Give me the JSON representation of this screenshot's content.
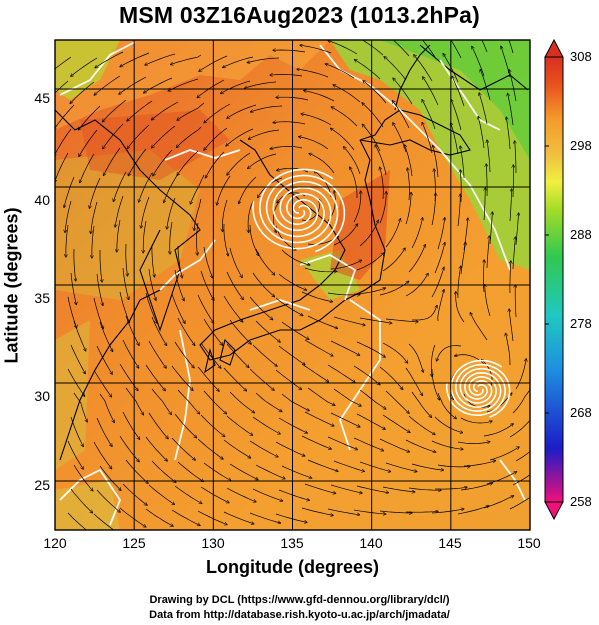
{
  "title": "MSM 03Z16Aug2023 (1013.2hPa)",
  "x_axis": {
    "label": "Longitude (degrees)",
    "ticks": [
      "120",
      "125",
      "130",
      "135",
      "140",
      "145",
      "150"
    ]
  },
  "y_axis": {
    "label": "Latitude  (degrees)",
    "ticks": [
      "25",
      "30",
      "35",
      "40",
      "45"
    ]
  },
  "colorbar": {
    "ticks": [
      "308",
      "298",
      "288",
      "278",
      "268",
      "258"
    ],
    "colors": [
      "#f0107a",
      "#1c1cc8",
      "#1e90e0",
      "#20c8c0",
      "#30c850",
      "#a8dc28",
      "#f0f040",
      "#f0c040",
      "#f49a2a",
      "#e8501e",
      "#d83020"
    ]
  },
  "credits": {
    "line1": "Drawing by DCL (https://www.gfd-dennou.org/library/dcl/)",
    "line2": "Data from http://database.rish.kyoto-u.ac.jp/arch/jmadata/"
  },
  "map": {
    "lon_range": [
      120,
      150
    ],
    "lat_range": [
      22.5,
      47.5
    ],
    "low_centers": [
      {
        "name": "cyclone-center-north",
        "lon": 135.5,
        "lat": 38.8
      },
      {
        "name": "cyclone-center-south",
        "lon": 146.8,
        "lat": 29.7
      }
    ]
  }
}
